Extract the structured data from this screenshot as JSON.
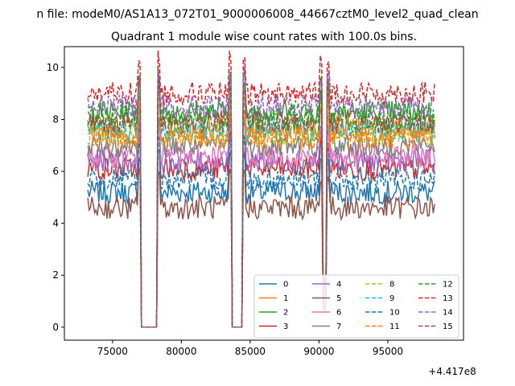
{
  "figure": {
    "suptitle": "n file: modeM0/AS1A13_072T01_9000006008_44667cztM0_level2_quad_clean"
  },
  "chart_data": {
    "type": "line",
    "title": "Quadrant 1 module wise count rates with 100.0s bins.",
    "xlabel": "",
    "ylabel": "",
    "x_offset_label": "+4.417e8",
    "x_offset": 441700000,
    "xlim": [
      441771500,
      441800500
    ],
    "ylim": [
      -0.5,
      10.8
    ],
    "x_ticks": [
      75000,
      80000,
      85000,
      90000,
      95000
    ],
    "x_tick_labels": [
      "75000",
      "80000",
      "85000",
      "90000",
      "95000"
    ],
    "y_ticks": [
      0,
      2,
      4,
      6,
      8,
      10
    ],
    "y_tick_labels": [
      "0",
      "2",
      "4",
      "6",
      "8",
      "10"
    ],
    "x_start": 441773200,
    "x_end": 441798400,
    "bin_seconds": 100,
    "gaps": [
      [
        441777100,
        441778200
      ],
      [
        441783700,
        441784400
      ]
    ],
    "dip": {
      "center": 441790400,
      "min": 0.5
    },
    "grid": false,
    "legend_position": "lower-right",
    "legend_columns": 4,
    "series": [
      {
        "name": "0",
        "mean": 5.2,
        "color": "#1f77b4",
        "style": "solid"
      },
      {
        "name": "1",
        "mean": 7.7,
        "color": "#ff7f0e",
        "style": "solid"
      },
      {
        "name": "2",
        "mean": 8.3,
        "color": "#2ca02c",
        "style": "solid"
      },
      {
        "name": "3",
        "mean": 6.1,
        "color": "#d62728",
        "style": "solid"
      },
      {
        "name": "4",
        "mean": 6.4,
        "color": "#9467bd",
        "style": "solid"
      },
      {
        "name": "5",
        "mean": 4.6,
        "color": "#8c564b",
        "style": "solid"
      },
      {
        "name": "6",
        "mean": 6.6,
        "color": "#e377c2",
        "style": "solid"
      },
      {
        "name": "7",
        "mean": 7.0,
        "color": "#7f7f7f",
        "style": "solid"
      },
      {
        "name": "8",
        "mean": 7.4,
        "color": "#bcbd22",
        "style": "dashed"
      },
      {
        "name": "9",
        "mean": 7.6,
        "color": "#17becf",
        "style": "dashed"
      },
      {
        "name": "10",
        "mean": 5.7,
        "color": "#1f77b4",
        "style": "dashed"
      },
      {
        "name": "11",
        "mean": 7.3,
        "color": "#ff7f0e",
        "style": "dashed"
      },
      {
        "name": "12",
        "mean": 8.0,
        "color": "#2ca02c",
        "style": "dashed"
      },
      {
        "name": "13",
        "mean": 9.0,
        "color": "#d62728",
        "style": "dashed"
      },
      {
        "name": "14",
        "mean": 8.5,
        "color": "#9467bd",
        "style": "dashed"
      },
      {
        "name": "15",
        "mean": 7.9,
        "color": "#8c564b",
        "style": "dashed"
      }
    ]
  }
}
